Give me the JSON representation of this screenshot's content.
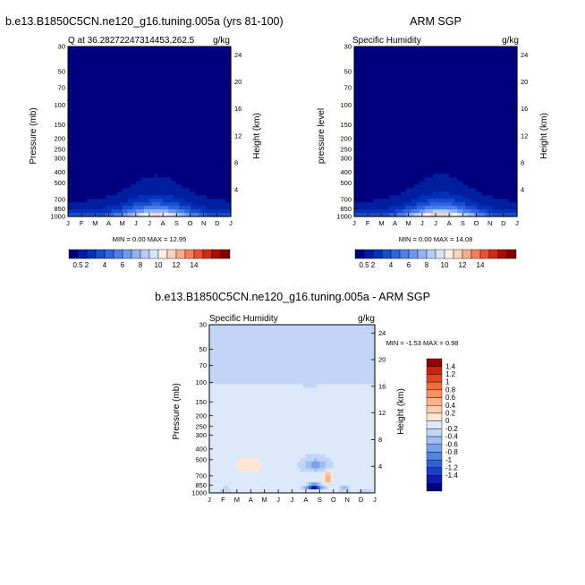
{
  "colors": {
    "full": [
      "#00007f",
      "#001ea0",
      "#0033bb",
      "#1a4ccc",
      "#2e66dd",
      "#4d80e6",
      "#6f99ee",
      "#93b3f3",
      "#b6ccf7",
      "#d9e6fb",
      "#fff0e6",
      "#fcd3bd",
      "#f9ad8f",
      "#f47f5e",
      "#e85133",
      "#d32a12",
      "#b00b00",
      "#800000"
    ],
    "diff": [
      "#00007f",
      "#0a1fa6",
      "#1a40c6",
      "#3060d8",
      "#5484e4",
      "#7aa2ec",
      "#9fbdf2",
      "#c2d5f7",
      "#dce9fb",
      "#ffe6d4",
      "#fdcdb0",
      "#fab28a",
      "#f49263",
      "#ec6d3e",
      "#de4720",
      "#c52410",
      "#8e0505"
    ]
  },
  "months": [
    "J",
    "F",
    "M",
    "A",
    "M",
    "J",
    "J",
    "A",
    "S",
    "O",
    "N",
    "D",
    "J"
  ],
  "pressure_ticks": [
    30,
    50,
    70,
    100,
    150,
    200,
    250,
    300,
    400,
    500,
    700,
    850,
    1000
  ],
  "height_ticks": [
    24,
    20,
    16,
    12,
    8,
    4
  ],
  "full_colorbar_labels": [
    "0.5",
    "2",
    "4",
    "6",
    "8",
    "10",
    "12",
    "14"
  ],
  "diff_colorbar_labels": [
    "1.4",
    "1.2",
    "1",
    "0.8",
    "0.6",
    "0.4",
    "0.2",
    "0",
    "-0.2",
    "-0.4",
    "-0.6",
    "-0.8",
    "-1",
    "-1.2",
    "-1.4"
  ],
  "chart_data": [
    {
      "type": "heatmap",
      "title": "b.e13.B1850C5CN.ne120_g16.tuning.005a (yrs 81-100)",
      "left_subtitle": "Q at 36.28272247314453,262.5",
      "units": "g/kg",
      "xlabel": "",
      "ylabel": "Pressure (mb)",
      "y2label": "Height (km)",
      "stats": "MIN =   0.00 MAX =  12.95",
      "min": 0.0,
      "max": 12.95,
      "peak_month": 6.5
    },
    {
      "type": "heatmap",
      "title": "ARM SGP",
      "left_subtitle": "Specific Humidity",
      "units": "g/kg",
      "xlabel": "",
      "ylabel": "pressure level",
      "y2label": "Height (km)",
      "stats": "MIN =   0.00 MAX =  14.08",
      "min": 0.0,
      "max": 14.08,
      "peak_month": 6.4
    },
    {
      "type": "heatmap",
      "title": "b.e13.B1850C5CN.ne120_g16.tuning.005a - ARM SGP",
      "left_subtitle": "Specific Humidity",
      "units": "g/kg",
      "xlabel": "",
      "ylabel": "Pressure (mb)",
      "y2label": "Height (km)",
      "stats": "MIN =  -1.53 MAX =   0.98",
      "min": -1.53,
      "max": 0.98
    }
  ]
}
